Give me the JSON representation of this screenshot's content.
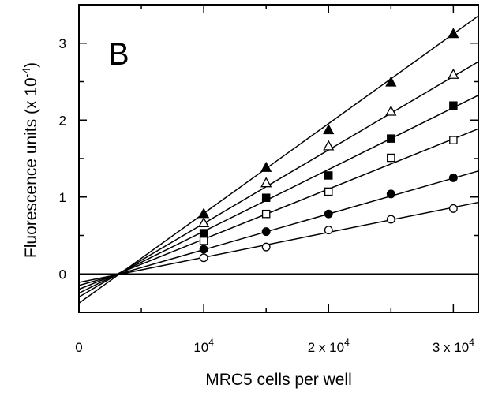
{
  "chart_data": {
    "type": "scatter",
    "panel_label": "B",
    "xlabel": "MRC5 cells per well",
    "ylabel_prefix": "Fluorescence units (x 10",
    "ylabel_exp": "-4",
    "ylabel_suffix": ")",
    "xlim": [
      0,
      32000
    ],
    "ylim": [
      -0.5,
      3.5
    ],
    "x_ticks": [
      {
        "value": 0,
        "base": "0",
        "exp": ""
      },
      {
        "value": 10000,
        "base": "10",
        "exp": "4"
      },
      {
        "value": 20000,
        "base": "2 x 10",
        "exp": "4"
      },
      {
        "value": 30000,
        "base": "3 x 10",
        "exp": "4"
      }
    ],
    "y_ticks": [
      {
        "value": 0,
        "label": "0"
      },
      {
        "value": 1,
        "label": "1"
      },
      {
        "value": 2,
        "label": "2"
      },
      {
        "value": 3,
        "label": "3"
      }
    ],
    "zero_line": true,
    "x": [
      10000,
      15000,
      20000,
      25000,
      30000
    ],
    "series": [
      {
        "marker": "triangle",
        "filled": true,
        "values": [
          0.78,
          1.38,
          1.87,
          2.49,
          3.12
        ],
        "fit": {
          "slope": 0.0001167,
          "intercept": -0.38
        }
      },
      {
        "marker": "triangle",
        "filled": false,
        "values": [
          0.66,
          1.18,
          1.66,
          2.11,
          2.59
        ],
        "fit": {
          "slope": 9.56e-05,
          "intercept": -0.3
        }
      },
      {
        "marker": "square",
        "filled": true,
        "values": [
          0.53,
          0.99,
          1.28,
          1.76,
          2.19
        ],
        "fit": {
          "slope": 8.04e-05,
          "intercept": -0.25
        }
      },
      {
        "marker": "square",
        "filled": false,
        "values": [
          0.43,
          0.78,
          1.07,
          1.51,
          1.74
        ],
        "fit": {
          "slope": 6.52e-05,
          "intercept": -0.2
        }
      },
      {
        "marker": "circle",
        "filled": true,
        "values": [
          0.32,
          0.55,
          0.78,
          1.04,
          1.25
        ],
        "fit": {
          "slope": 4.65e-05,
          "intercept": -0.15
        }
      },
      {
        "marker": "circle",
        "filled": false,
        "values": [
          0.21,
          0.35,
          0.57,
          0.71,
          0.85
        ],
        "fit": {
          "slope": 3.25e-05,
          "intercept": -0.11
        }
      }
    ]
  }
}
